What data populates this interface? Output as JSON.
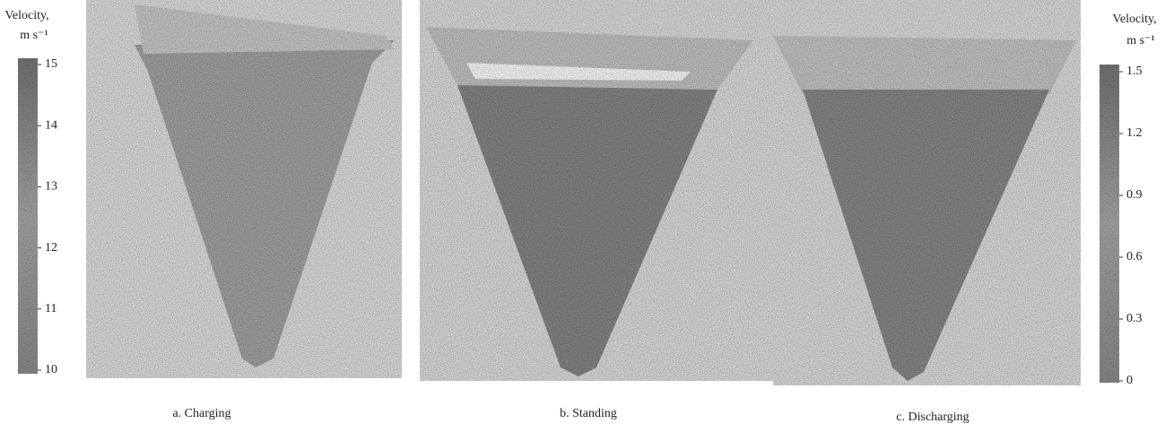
{
  "colorbars": [
    {
      "title": "Velocity,",
      "unit": "m s⁻¹",
      "ticks": [
        10,
        11,
        12,
        13,
        14,
        15
      ]
    },
    {
      "title": "Velocity,",
      "unit": "m s⁻¹",
      "ticks": [
        0,
        0.3,
        0.6,
        0.9,
        1.2,
        1.5
      ]
    }
  ],
  "panels": [
    {
      "caption": "a. Charging"
    },
    {
      "caption": "b. Standing"
    },
    {
      "caption": "c. Discharging"
    }
  ]
}
